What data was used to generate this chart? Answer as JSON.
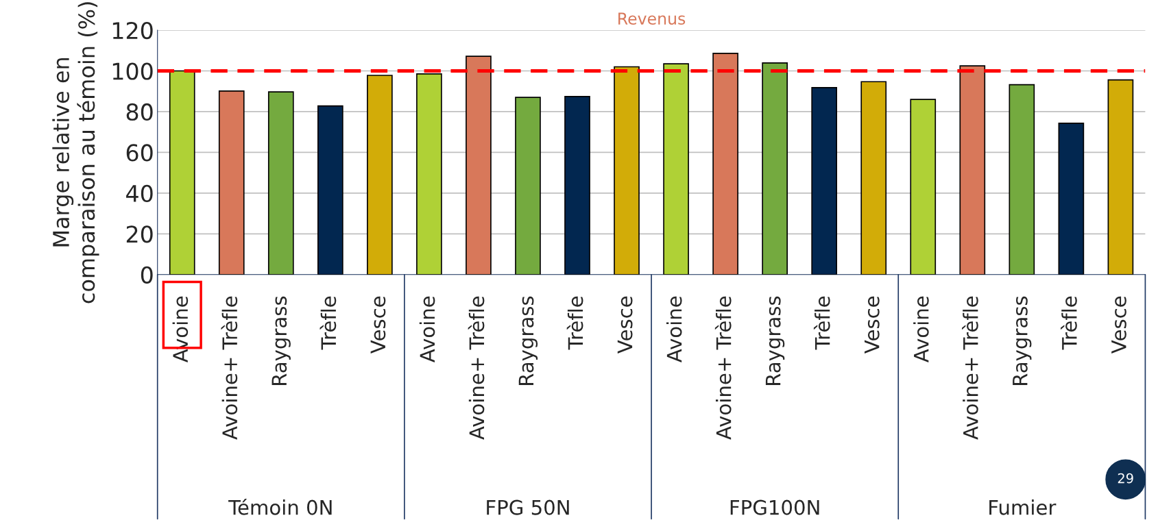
{
  "chart_data": {
    "type": "bar",
    "title": "Revenus",
    "ylabel": "Marge relative en\ncomparaison au témoin (%)",
    "categories": [
      "Avoine",
      "Avoine+ Trèfle",
      "Raygrass",
      "Trèfle",
      "Vesce",
      "Avoine",
      "Avoine+ Trèfle",
      "Raygrass",
      "Trèfle",
      "Vesce",
      "Avoine",
      "Avoine+ Trèfle",
      "Raygrass",
      "Trèfle",
      "Vesce",
      "Avoine",
      "Avoine+ Trèfle",
      "Raygrass",
      "Trèfle",
      "Vesce"
    ],
    "values": [
      100,
      90.1,
      89.7,
      82.8,
      97.8,
      98.5,
      107.2,
      87.0,
      87.4,
      102.0,
      103.5,
      108.6,
      103.9,
      91.8,
      94.7,
      86.0,
      102.5,
      93.2,
      74.3,
      95.6
    ],
    "colors": [
      "#afd136",
      "#d8785a",
      "#74aa3f",
      "#022750",
      "#d2ac08",
      "#afd136",
      "#d8785a",
      "#74aa3f",
      "#022750",
      "#d2ac08",
      "#afd136",
      "#d8785a",
      "#74aa3f",
      "#022750",
      "#d2ac08",
      "#afd136",
      "#d8785a",
      "#74aa3f",
      "#022750",
      "#d2ac08"
    ],
    "ylim": [
      0,
      120
    ],
    "yticks": [
      0,
      20,
      40,
      60,
      80,
      100,
      120
    ],
    "grid": "y",
    "ref_lines": [
      {
        "axis": "y",
        "value": 100,
        "color": "#ff0000",
        "line_style": "dashed"
      }
    ],
    "annotations": [
      "Témoin 0N",
      "FPG 50N",
      "FPG100N",
      "Fumier",
      "29"
    ]
  }
}
